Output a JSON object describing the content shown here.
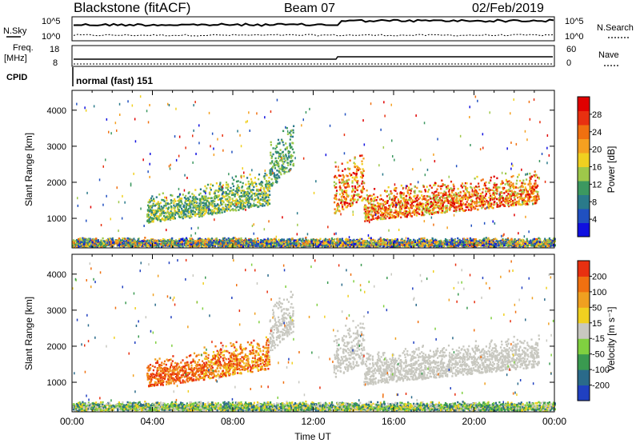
{
  "header": {
    "station": "Blackstone (fitACF)",
    "beam": "Beam 07",
    "date": "02/Feb/2019",
    "cpid_label": "CPID",
    "cpid_text": "normal (fast) 151"
  },
  "top_panels": {
    "nsky_label": "N.Sky",
    "nsearch_label": "N.Search",
    "noise_ticks": [
      "10^5",
      "10^0"
    ],
    "freq_label": "Freq.",
    "freq_unit": "[MHz]",
    "freq_ticks": [
      "18",
      "8"
    ],
    "nave_label": "Nave",
    "nave_ticks": [
      "60",
      "0"
    ],
    "colors": {
      "line": "#000000"
    }
  },
  "chart_data": [
    {
      "type": "heatmap",
      "name": "power",
      "ylabel": "Slant Range [km]",
      "ylim": [
        180,
        4550
      ],
      "yticks": [
        "1000",
        "2000",
        "3000",
        "4000"
      ],
      "xlim": [
        0,
        24
      ],
      "colorbar_label": "Power [dB]",
      "colorbar_ticks": [
        "4",
        "8",
        "12",
        "16",
        "20",
        "24",
        "28"
      ],
      "colorscale": [
        "#1010e0",
        "#2050c0",
        "#2a7a8a",
        "#3c9860",
        "#9ec84a",
        "#f0d020",
        "#f5a020",
        "#f07010",
        "#e83010",
        "#e00000"
      ],
      "bands": [
        {
          "t0": 3.7,
          "t1": 6.6,
          "r0": 850,
          "r1": 1050,
          "r1b": 1650,
          "c": [
            2,
            5
          ]
        },
        {
          "t0": 6.5,
          "t1": 9.8,
          "r0": 1050,
          "r1": 1350,
          "r1b": 2050,
          "c": [
            2,
            5
          ]
        },
        {
          "t0": 9.8,
          "t1": 11.0,
          "r0": 1800,
          "r1": 2400,
          "r1b": 3200,
          "c": [
            2,
            4
          ]
        },
        {
          "t0": 13.0,
          "t1": 14.5,
          "r0": 1100,
          "r1": 1500,
          "r1b": 2550,
          "c": [
            4,
            9
          ]
        },
        {
          "t0": 14.5,
          "t1": 23.2,
          "r0": 900,
          "r1": 1400,
          "r1b": 1850,
          "c": [
            4,
            9
          ]
        },
        {
          "t0": 0.0,
          "t1": 24.0,
          "r0": 200,
          "r1": 200,
          "r1b": 450,
          "c": [
            0,
            7
          ]
        }
      ]
    },
    {
      "type": "heatmap",
      "name": "velocity",
      "ylabel": "Slant Range [km]",
      "ylim": [
        180,
        4550
      ],
      "yticks": [
        "1000",
        "2000",
        "3000",
        "4000"
      ],
      "xlim": [
        0,
        24
      ],
      "xlabel": "Time UT",
      "xticks": [
        "00:00",
        "04:00",
        "08:00",
        "12:00",
        "16:00",
        "20:00",
        "00:00"
      ],
      "colorbar_label": "Velocity [m s⁻¹]",
      "colorbar_ticks": [
        "200",
        "100",
        "50",
        "15",
        "-15",
        "-50",
        "-100",
        "-200"
      ],
      "colorscale": [
        "#2040c0",
        "#2a6a8a",
        "#3a9a50",
        "#80d040",
        "#c8c8c0",
        "#f0d020",
        "#f0a020",
        "#f07010",
        "#e83010"
      ],
      "bands": [
        {
          "t0": 3.7,
          "t1": 6.6,
          "r0": 850,
          "r1": 1050,
          "r1b": 1650,
          "c": [
            6,
            8
          ]
        },
        {
          "t0": 6.5,
          "t1": 9.8,
          "r0": 1050,
          "r1": 1350,
          "r1b": 2050,
          "c": [
            5,
            8
          ]
        },
        {
          "t0": 9.8,
          "t1": 11.0,
          "r0": 1800,
          "r1": 2400,
          "r1b": 3200,
          "c": [
            4,
            4
          ]
        },
        {
          "t0": 13.0,
          "t1": 14.5,
          "r0": 1100,
          "r1": 1500,
          "r1b": 2550,
          "c": [
            4,
            4
          ]
        },
        {
          "t0": 14.5,
          "t1": 23.2,
          "r0": 900,
          "r1": 1400,
          "r1b": 1850,
          "c": [
            4,
            4
          ]
        },
        {
          "t0": 0.0,
          "t1": 24.0,
          "r0": 200,
          "r1": 200,
          "r1b": 450,
          "c": [
            1,
            5
          ]
        }
      ]
    }
  ]
}
